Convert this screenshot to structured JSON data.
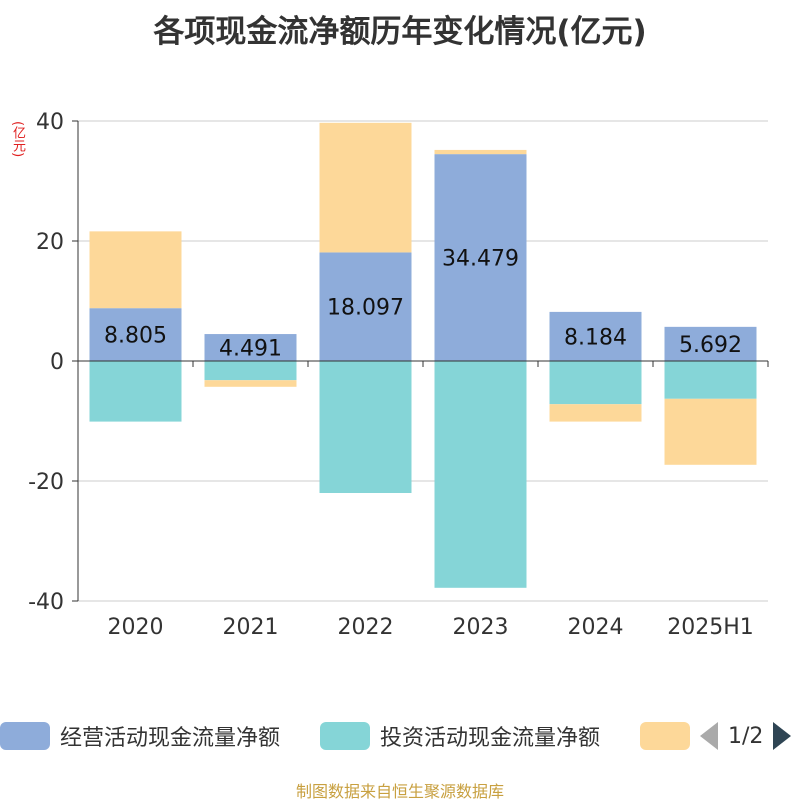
{
  "chart_data": {
    "type": "bar",
    "stacked": true,
    "title": "各项现金流净额历年变化情况(亿元)",
    "unit_label": "(亿元)",
    "categories": [
      "2020",
      "2021",
      "2022",
      "2023",
      "2024",
      "2025H1"
    ],
    "ylim": [
      -40,
      40
    ],
    "yticks": [
      40,
      20,
      0,
      -20,
      -40
    ],
    "grid": true,
    "legend_position": "bottom",
    "series": [
      {
        "name": "经营活动现金流量净额",
        "color": "#8eacda",
        "values": [
          8.805,
          4.491,
          18.097,
          34.479,
          8.184,
          5.692
        ],
        "labels": [
          "8.805",
          "4.491",
          "18.097",
          "34.479",
          "8.184",
          "5.692"
        ]
      },
      {
        "name": "投资活动现金流量净额",
        "color": "#85d5d7",
        "values": [
          -10.1,
          -3.2,
          -22.0,
          -37.8,
          -7.2,
          -6.3
        ]
      },
      {
        "name": "",
        "color": "#fdd899",
        "values": [
          12.8,
          -1.1,
          21.6,
          0.7,
          -2.9,
          -11.0
        ]
      }
    ]
  },
  "legend": {
    "items": [
      {
        "label": "经营活动现金流量净额",
        "color": "#8eacda"
      },
      {
        "label": "投资活动现金流量净额",
        "color": "#85d5d7"
      },
      {
        "label": "",
        "color": "#fdd899"
      }
    ],
    "page": "1/2"
  },
  "source": "制图数据来自恒生聚源数据库"
}
